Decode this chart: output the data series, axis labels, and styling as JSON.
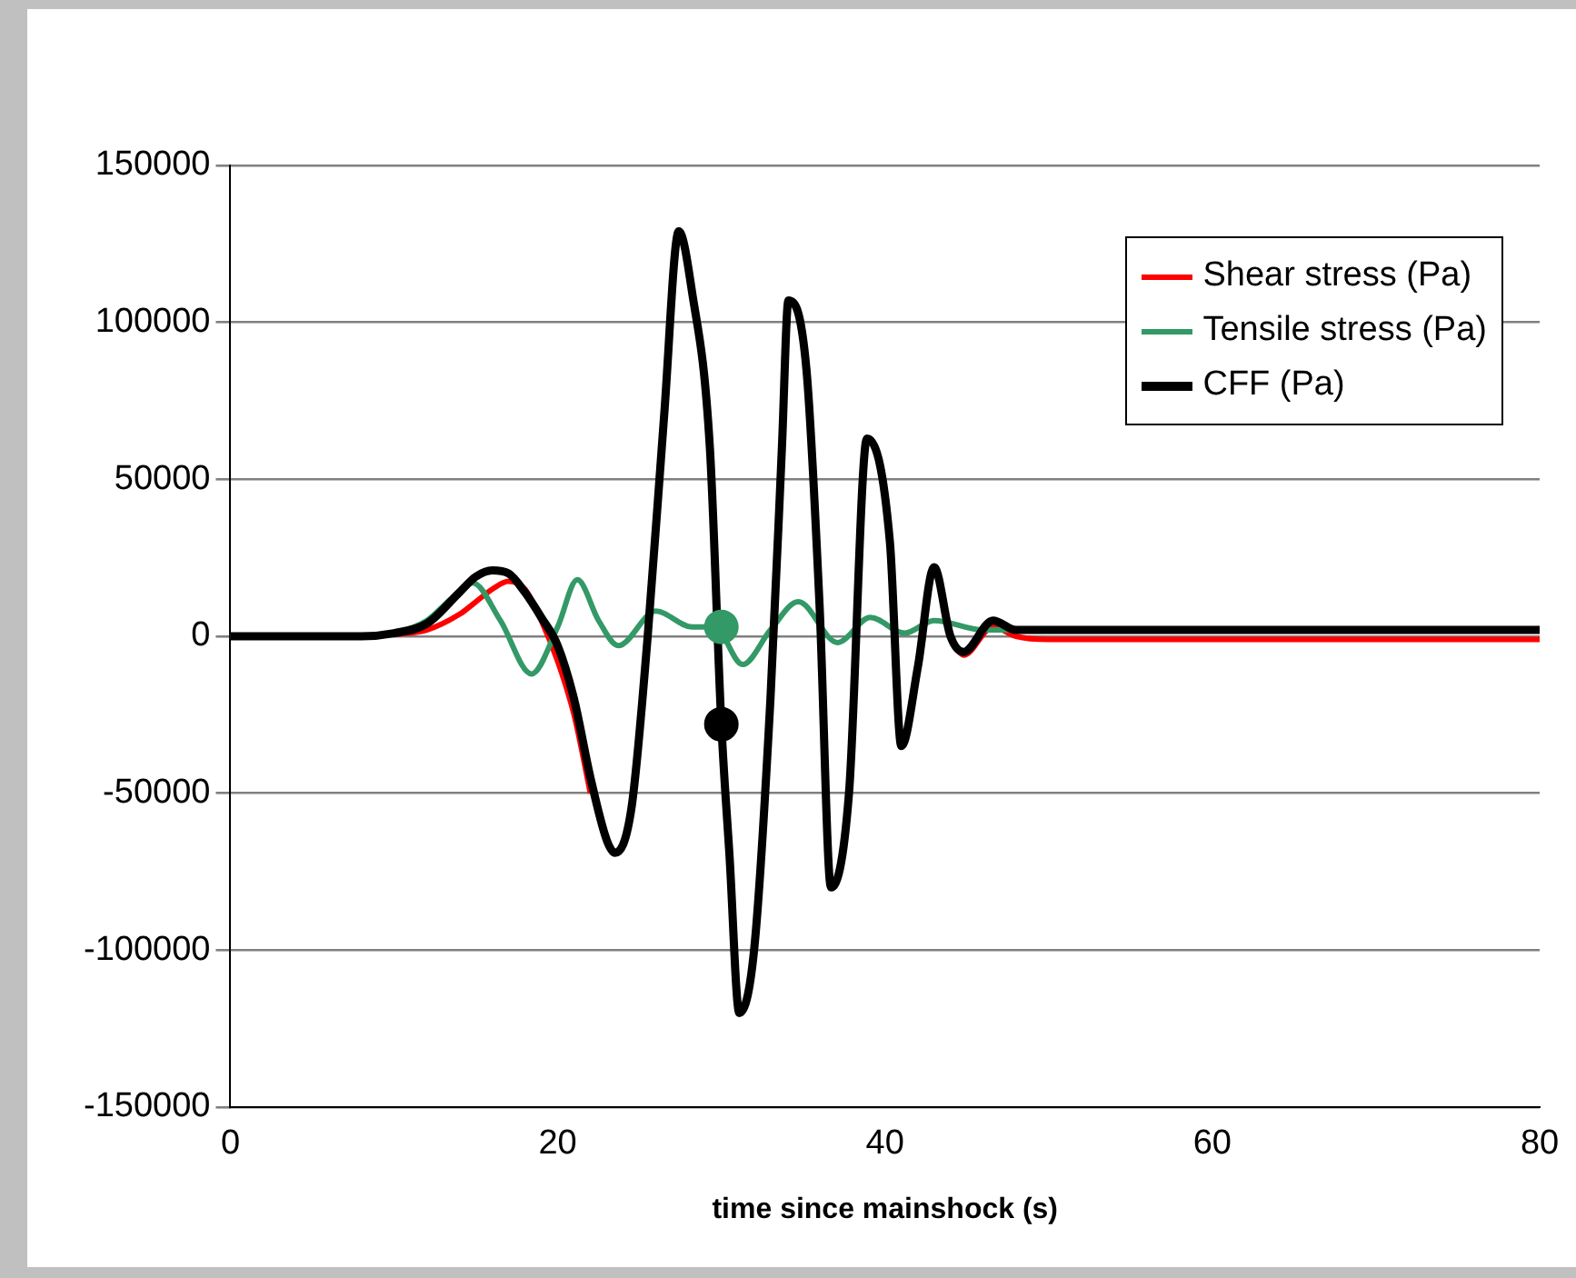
{
  "chart_data": {
    "type": "line",
    "xlabel": "time since mainshock (s)",
    "xlim": [
      0,
      80
    ],
    "xticks": [
      0,
      20,
      40,
      60,
      80
    ],
    "ylim": [
      -150000,
      150000
    ],
    "yticks": [
      -150000,
      -100000,
      -50000,
      0,
      50000,
      100000,
      150000
    ],
    "grid": "y",
    "legend": "top right",
    "marker": "none",
    "line_style": "solid",
    "series": [
      {
        "name": "Shear stress (Pa)",
        "color": "#ff0000",
        "x": [
          10,
          12,
          14,
          15,
          16,
          17,
          18,
          19,
          20,
          21,
          22,
          23,
          44,
          44.8,
          46.6,
          48,
          50,
          80
        ],
        "values": [
          500,
          2000,
          7000,
          11000,
          15000,
          17500,
          15000,
          5000,
          -8000,
          -25000,
          -50000,
          null,
          0,
          -6000,
          3000,
          0,
          -1000,
          -1000
        ]
      },
      {
        "name": "Tensile stress (Pa)",
        "color": "#339966",
        "x": [
          0,
          8,
          10,
          12,
          13.5,
          14.8,
          16.5,
          18.4,
          20,
          21.2,
          22.5,
          23.7,
          26,
          28.2,
          29.6,
          31.3,
          33,
          34.7,
          37.1,
          39.1,
          41.2,
          43,
          46,
          50,
          80
        ],
        "values": [
          0,
          0,
          1000,
          5000,
          12000,
          17000,
          5000,
          -12000,
          3000,
          18000,
          5000,
          -3000,
          8000,
          3000,
          3000,
          -9000,
          2000,
          11000,
          -2000,
          6000,
          1000,
          5000,
          2000,
          2000,
          2000
        ]
      },
      {
        "name": "CFF (Pa)",
        "color": "#000000",
        "x": [
          0,
          8,
          10,
          12,
          14,
          15,
          16,
          17,
          18,
          19,
          20,
          21,
          22,
          23,
          23.5,
          24.5,
          25.5,
          26.5,
          27.4,
          28.2,
          29.3,
          30,
          30.5,
          31.1,
          32,
          33,
          33.7,
          34.1,
          35.2,
          36,
          36.7,
          37.8,
          38.9,
          40.3,
          41,
          42,
          43,
          44,
          44.8,
          46.6,
          48,
          50,
          80
        ],
        "values": [
          0,
          0,
          1000,
          4000,
          14000,
          19000,
          21000,
          20000,
          14000,
          6000,
          -3000,
          -20000,
          -45000,
          -65000,
          -69000,
          -55000,
          0,
          70000,
          129000,
          110000,
          60000,
          -28000,
          -70000,
          -120000,
          -100000,
          -20000,
          60000,
          107000,
          85000,
          10000,
          -80000,
          -50000,
          63000,
          30000,
          -35000,
          -10000,
          22000,
          0,
          -5000,
          5000,
          2000,
          2000,
          2000
        ]
      },
      {
        "type": "scatter",
        "marker": "circle",
        "color": "#339966",
        "x": [
          30
        ],
        "values": [
          3000
        ]
      },
      {
        "type": "scatter",
        "marker": "circle",
        "color": "#000000",
        "x": [
          30
        ],
        "values": [
          -28000
        ]
      }
    ]
  }
}
